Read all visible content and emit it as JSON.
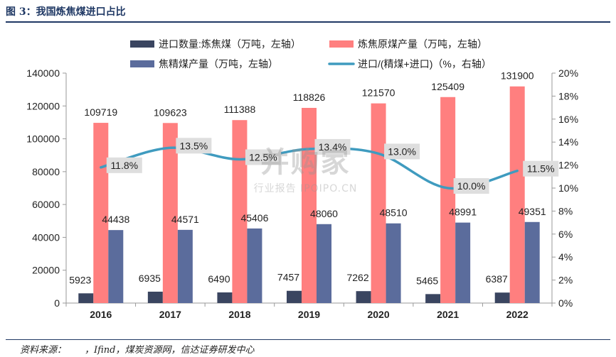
{
  "figure": {
    "title": "图 3：我国炼焦煤进口占比",
    "source": "资料来源：　　，Ifind，煤炭资源网，信达证券研发中心",
    "watermark_main": "并购家",
    "watermark_sub": "行业报告 IPOIPO.CN"
  },
  "chart_data": {
    "type": "bar",
    "categories": [
      "2016",
      "2017",
      "2018",
      "2019",
      "2020",
      "2021",
      "2022"
    ],
    "series": [
      {
        "name": "进口数量:炼焦煤（万吨，左轴）",
        "kind": "bar",
        "axis": "left",
        "color": "#3a4560",
        "values": [
          5923,
          6935,
          6490,
          7457,
          7262,
          5465,
          6387
        ]
      },
      {
        "name": "炼焦原煤产量（万吨，左轴）",
        "kind": "bar",
        "axis": "left",
        "color": "#ff7f7f",
        "values": [
          109719,
          109623,
          111388,
          118826,
          121570,
          125409,
          131900
        ]
      },
      {
        "name": "焦精煤产量（万吨，左轴）",
        "kind": "bar",
        "axis": "left",
        "color": "#5b6c9c",
        "values": [
          44438,
          44571,
          45406,
          48060,
          48510,
          48991,
          49351
        ]
      },
      {
        "name": "进口/(精煤+进口)（%，右轴）",
        "kind": "line",
        "axis": "right",
        "color": "#3f9bbf",
        "values": [
          11.8,
          13.5,
          12.5,
          13.4,
          13.0,
          10.0,
          11.5
        ],
        "labels": [
          "11.8%",
          "13.5%",
          "12.5%",
          "13.4%",
          "13.0%",
          "10.0%",
          "11.5%"
        ]
      }
    ],
    "ylim_left": [
      0,
      140000
    ],
    "yticks_left": [
      "0",
      "20000",
      "40000",
      "60000",
      "80000",
      "100000",
      "120000",
      "140000"
    ],
    "ylim_right": [
      0,
      20
    ],
    "yticks_right": [
      "0%",
      "2%",
      "4%",
      "6%",
      "8%",
      "10%",
      "12%",
      "14%",
      "16%",
      "18%",
      "20%"
    ],
    "legend_position": "top",
    "grid": false
  }
}
